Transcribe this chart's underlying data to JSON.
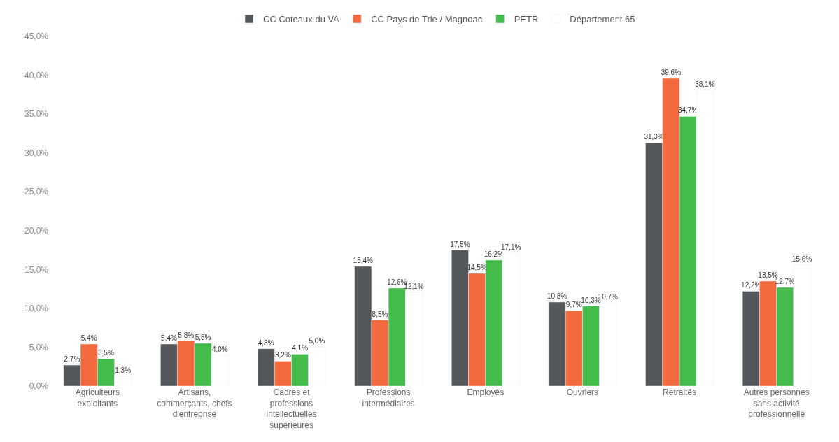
{
  "chart_data": {
    "type": "bar",
    "categories": [
      "Agriculteurs exploitants",
      "Artisans, commerçants, chefs d'entreprise",
      "Cadres et professions intellectuelles supérieures",
      "Professions intermédiaires",
      "Employés",
      "Ouvriers",
      "Retraités",
      "Autres personnes sans activité professionnelle"
    ],
    "series": [
      {
        "name": "CC Coteaux du VA",
        "color": "#54585a",
        "values": [
          2.7,
          5.4,
          4.8,
          15.4,
          17.5,
          10.8,
          31.3,
          12.2
        ],
        "value_labels": [
          "2,7%",
          "5,4%",
          "4,8%",
          "15,4%",
          "17,5%",
          "10,8%",
          "31,3%",
          "12,2%"
        ]
      },
      {
        "name": "CC Pays de Trie / Magnoac",
        "color": "#f26a3d",
        "values": [
          5.4,
          5.8,
          3.2,
          8.5,
          14.5,
          9.7,
          39.6,
          13.5
        ],
        "value_labels": [
          "5,4%",
          "5,8%",
          "3,2%",
          "8,5%",
          "14,5%",
          "9,7%",
          "39,6%",
          "13,5%"
        ]
      },
      {
        "name": "PETR",
        "color": "#44bb4a",
        "values": [
          3.5,
          5.5,
          4.1,
          12.6,
          16.2,
          10.3,
          34.7,
          12.7
        ],
        "value_labels": [
          "3,5%",
          "5,5%",
          "4,1%",
          "12,6%",
          "16,2%",
          "10,3%",
          "34,7%",
          "12,7%"
        ]
      },
      {
        "name": "Département 65",
        "color": "#ffffff",
        "values": [
          1.3,
          4.0,
          5.0,
          12.1,
          17.1,
          10.7,
          38.1,
          15.6
        ],
        "value_labels": [
          "1,3%",
          "4,0%",
          "5,0%",
          "12,1%",
          "17,1%",
          "10,7%",
          "38,1%",
          "15,6%"
        ]
      }
    ],
    "ylim": [
      0,
      45
    ],
    "yticks": [
      {
        "value": 0,
        "label": "0,0%"
      },
      {
        "value": 5,
        "label": "5,0%"
      },
      {
        "value": 10,
        "label": "10,0%"
      },
      {
        "value": 15,
        "label": "15,0%"
      },
      {
        "value": 20,
        "label": "20,0%"
      },
      {
        "value": 25,
        "label": "25,0%"
      },
      {
        "value": 30,
        "label": "30,0%"
      },
      {
        "value": 35,
        "label": "35,0%"
      },
      {
        "value": 40,
        "label": "40,0%"
      },
      {
        "value": 45,
        "label": "45,0%"
      }
    ],
    "legend": "top"
  }
}
